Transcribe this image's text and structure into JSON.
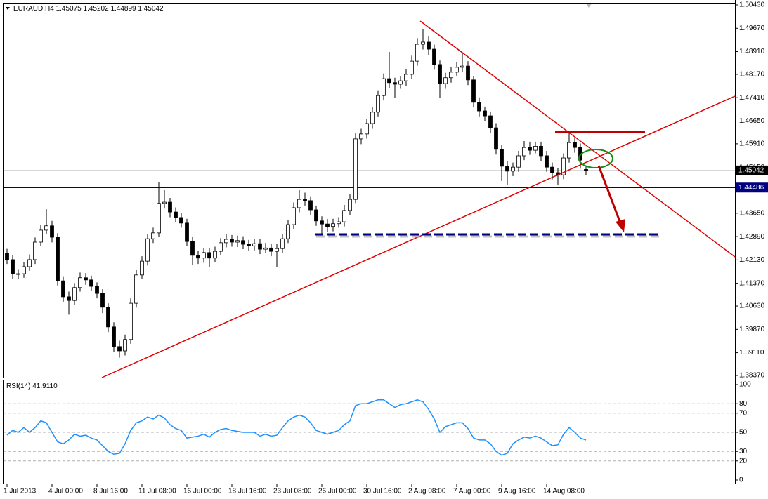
{
  "chart_data": [
    {
      "type": "candlestick",
      "title": "EURAUD,H4",
      "categories": [
        "1 Jul 2013",
        null,
        null,
        null,
        null,
        null,
        null,
        null,
        "4 Jul 00:00",
        null,
        null,
        null,
        null,
        null,
        null,
        null,
        "8 Jul 16:00",
        null,
        null,
        null,
        null,
        null,
        null,
        null,
        "11 Jul 08:00",
        null,
        null,
        null,
        null,
        null,
        null,
        null,
        "16 Jul 00:00",
        null,
        null,
        null,
        null,
        null,
        null,
        null,
        "18 Jul 16:00",
        null,
        null,
        null,
        null,
        null,
        null,
        null,
        "23 Jul 08:00",
        null,
        null,
        null,
        null,
        null,
        null,
        null,
        "26 Jul 00:00",
        null,
        null,
        null,
        null,
        null,
        null,
        null,
        "30 Jul 16:00",
        null,
        null,
        null,
        null,
        null,
        null,
        null,
        "2 Aug 08:00",
        null,
        null,
        null,
        null,
        null,
        null,
        null,
        "7 Aug 00:00",
        null,
        null,
        null,
        null,
        null,
        null,
        null,
        "9 Aug 16:00",
        null,
        null,
        null,
        null,
        null,
        null,
        null,
        "14 Aug 08:00",
        null,
        null,
        null,
        null,
        null,
        null,
        null
      ],
      "open": [
        1.4235,
        1.4214,
        1.4168,
        1.4168,
        1.4191,
        1.4214,
        1.4271,
        1.431,
        1.4324,
        1.4287,
        1.4145,
        1.4093,
        1.4081,
        1.4123,
        1.4155,
        1.4148,
        1.4127,
        1.4104,
        1.4059,
        1.3995,
        1.3931,
        1.3917,
        1.3954,
        1.4072,
        1.4164,
        1.4209,
        1.4282,
        1.4301,
        1.4397,
        1.4401,
        1.4369,
        1.4351,
        1.4333,
        1.4273,
        1.4228,
        1.4219,
        1.4237,
        1.4219,
        1.4241,
        1.4269,
        1.428,
        1.4271,
        1.4276,
        1.4264,
        1.4259,
        1.4266,
        1.4248,
        1.4252,
        1.4241,
        1.425,
        1.4282,
        1.4328,
        1.4383,
        1.441,
        1.4406,
        1.4376,
        1.434,
        1.433,
        1.4322,
        1.4331,
        1.4337,
        1.4374,
        1.441,
        1.4607,
        1.4623,
        1.4657,
        1.4694,
        1.4748,
        1.4803,
        1.479,
        1.4785,
        1.4796,
        1.4817,
        1.486,
        1.4915,
        1.4922,
        1.4899,
        1.4849,
        1.4787,
        1.4806,
        1.4824,
        1.484,
        1.4844,
        1.4799,
        1.4726,
        1.4698,
        1.4682,
        1.4643,
        1.4573,
        1.4518,
        1.4502,
        1.4515,
        1.4552,
        1.4579,
        1.457,
        1.4583,
        1.4552,
        1.4515,
        1.4497,
        1.449,
        1.4545,
        1.4595,
        1.4579,
        1.45075
      ],
      "high": [
        1.4249,
        1.4228,
        1.4183,
        1.4206,
        1.4231,
        1.4286,
        1.4328,
        1.4378,
        1.434,
        1.43,
        1.416,
        1.411,
        1.4138,
        1.4172,
        1.417,
        1.4162,
        1.414,
        1.4118,
        1.4072,
        1.401,
        1.395,
        1.397,
        1.4088,
        1.418,
        1.4225,
        1.4298,
        1.4318,
        1.4465,
        1.444,
        1.4415,
        1.4384,
        1.4366,
        1.4347,
        1.4288,
        1.4243,
        1.4252,
        1.4252,
        1.4256,
        1.4284,
        1.4296,
        1.4294,
        1.4292,
        1.429,
        1.4278,
        1.4282,
        1.428,
        1.4268,
        1.4266,
        1.4264,
        1.4298,
        1.4344,
        1.44,
        1.444,
        1.4432,
        1.442,
        1.439,
        1.4355,
        1.4346,
        1.4347,
        1.4352,
        1.4392,
        1.4428,
        1.4625,
        1.464,
        1.4672,
        1.471,
        1.4765,
        1.482,
        1.489,
        1.4806,
        1.4812,
        1.4835,
        1.4878,
        1.4935,
        1.4965,
        1.494,
        1.4914,
        1.4862,
        1.4822,
        1.484,
        1.4858,
        1.4885,
        1.486,
        1.4812,
        1.4742,
        1.4712,
        1.4696,
        1.4658,
        1.4588,
        1.4534,
        1.453,
        1.4568,
        1.46,
        1.4598,
        1.4598,
        1.4598,
        1.4568,
        1.453,
        1.4512,
        1.456,
        1.4625,
        1.4612,
        1.4592,
        1.45202
      ],
      "low": [
        1.42,
        1.4152,
        1.415,
        1.4155,
        1.4178,
        1.42,
        1.4258,
        1.4297,
        1.427,
        1.413,
        1.4075,
        1.4035,
        1.4066,
        1.411,
        1.4132,
        1.4112,
        1.4088,
        1.404,
        1.3978,
        1.3914,
        1.3895,
        1.3902,
        1.394,
        1.4058,
        1.415,
        1.4195,
        1.4268,
        1.4288,
        1.438,
        1.4352,
        1.4335,
        1.4318,
        1.4258,
        1.4196,
        1.42,
        1.4204,
        1.419,
        1.4205,
        1.4228,
        1.4254,
        1.4256,
        1.4255,
        1.4248,
        1.4242,
        1.4244,
        1.4232,
        1.4235,
        1.4225,
        1.419,
        1.4236,
        1.4268,
        1.4314,
        1.4368,
        1.439,
        1.436,
        1.4324,
        1.4296,
        1.4305,
        1.4306,
        1.4318,
        1.4322,
        1.436,
        1.4398,
        1.459,
        1.4608,
        1.464,
        1.468,
        1.4732,
        1.4772,
        1.474,
        1.477,
        1.478,
        1.4802,
        1.4845,
        1.4898,
        1.488,
        1.4832,
        1.474,
        1.477,
        1.479,
        1.481,
        1.4825,
        1.4782,
        1.471,
        1.468,
        1.4666,
        1.4626,
        1.4556,
        1.447,
        1.4458,
        1.4486,
        1.45,
        1.4538,
        1.4555,
        1.456,
        1.4536,
        1.45,
        1.4475,
        1.4458,
        1.4476,
        1.453,
        1.4562,
        1.451,
        1.44899
      ],
      "close": [
        1.4214,
        1.4168,
        1.4168,
        1.4191,
        1.4214,
        1.4271,
        1.431,
        1.4324,
        1.4287,
        1.4145,
        1.4093,
        1.4081,
        1.4123,
        1.4155,
        1.4148,
        1.4127,
        1.4104,
        1.4059,
        1.3995,
        1.3931,
        1.3917,
        1.3954,
        1.4072,
        1.4164,
        1.4209,
        1.4282,
        1.4301,
        1.4397,
        1.4401,
        1.4369,
        1.4351,
        1.4333,
        1.4273,
        1.4228,
        1.4219,
        1.4237,
        1.4219,
        1.4241,
        1.4269,
        1.428,
        1.4271,
        1.4276,
        1.4264,
        1.4259,
        1.4266,
        1.4248,
        1.4252,
        1.4241,
        1.425,
        1.4282,
        1.4328,
        1.4383,
        1.441,
        1.4406,
        1.4376,
        1.434,
        1.433,
        1.4322,
        1.4331,
        1.4337,
        1.4374,
        1.441,
        1.4607,
        1.4623,
        1.4657,
        1.4694,
        1.4748,
        1.4803,
        1.479,
        1.4785,
        1.4796,
        1.4817,
        1.486,
        1.4915,
        1.4922,
        1.4899,
        1.4849,
        1.4787,
        1.4806,
        1.4824,
        1.484,
        1.4844,
        1.4799,
        1.4726,
        1.4698,
        1.4682,
        1.4643,
        1.4573,
        1.4518,
        1.4502,
        1.4515,
        1.4552,
        1.4579,
        1.457,
        1.4583,
        1.4552,
        1.4515,
        1.4497,
        1.449,
        1.4545,
        1.4595,
        1.4579,
        1.4538,
        1.45042
      ],
      "ylim": [
        1.3837,
        1.5043
      ],
      "yticks": [
        {
          "value": 1.5043,
          "label": "1.50430"
        },
        {
          "value": 1.4967,
          "label": "1.49670"
        },
        {
          "value": 1.4891,
          "label": "1.48910"
        },
        {
          "value": 1.4817,
          "label": "1.48170"
        },
        {
          "value": 1.4741,
          "label": "1.47410"
        },
        {
          "value": 1.4665,
          "label": "1.46650"
        },
        {
          "value": 1.4591,
          "label": "1.45910"
        },
        {
          "value": 1.4515,
          "label": "1.45150"
        },
        {
          "value": 1.4439,
          "label": "1.44390"
        },
        {
          "value": 1.4365,
          "label": "1.43650"
        },
        {
          "value": 1.4289,
          "label": "1.42890"
        },
        {
          "value": 1.4213,
          "label": "1.42130"
        },
        {
          "value": 1.4137,
          "label": "1.41370"
        },
        {
          "value": 1.4063,
          "label": "1.40630"
        },
        {
          "value": 1.3987,
          "label": "1.39870"
        },
        {
          "value": 1.3911,
          "label": "1.39110"
        },
        {
          "value": 1.3837,
          "label": "1.38370"
        }
      ],
      "level": {
        "value": 1.44486,
        "color": "#000080"
      }
    },
    {
      "type": "line",
      "name": "RSI(14)",
      "value_label": "41.9110",
      "color": "#1e90ff",
      "values": [
        47,
        52,
        50,
        55,
        50,
        55,
        62,
        60,
        50,
        40,
        38,
        42,
        48,
        46,
        47,
        44,
        42,
        36,
        30,
        27,
        28,
        38,
        52,
        60,
        62,
        66,
        64,
        68,
        65,
        58,
        54,
        52,
        44,
        45,
        46,
        48,
        45,
        50,
        53,
        54,
        52,
        51,
        50,
        50,
        50,
        46,
        48,
        46,
        47,
        55,
        62,
        66,
        68,
        66,
        60,
        52,
        50,
        48,
        50,
        52,
        58,
        62,
        78,
        80,
        80,
        82,
        84,
        84,
        80,
        76,
        79,
        80,
        82,
        84,
        82,
        74,
        64,
        50,
        56,
        58,
        60,
        60,
        54,
        44,
        42,
        42,
        38,
        30,
        26,
        28,
        38,
        42,
        45,
        44,
        46,
        44,
        40,
        36,
        37,
        48,
        55,
        50,
        44,
        41.911
      ],
      "ylim": [
        0,
        100
      ],
      "yticks": [
        100,
        80,
        70,
        50,
        30,
        20,
        0
      ]
    }
  ]
}
